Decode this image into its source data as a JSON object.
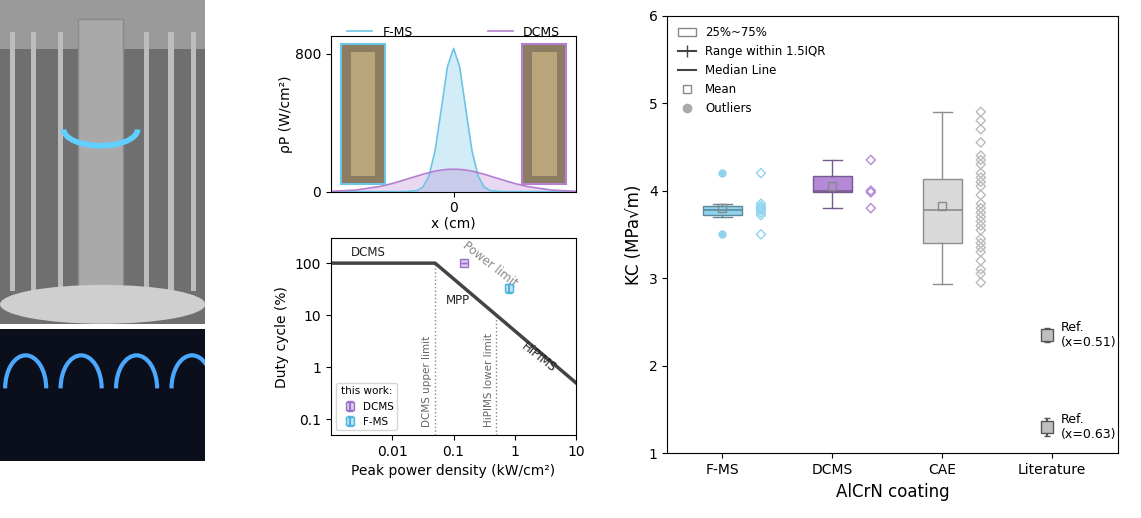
{
  "chart_data": [
    {
      "type": "line",
      "xlabel": "x (cm)",
      "ylabel": "ρP (W/cm²)",
      "x": [
        -10,
        -8,
        -6,
        -5,
        -4,
        -3,
        -2.5,
        -2,
        -1.5,
        -1,
        -0.5,
        0,
        0.5,
        1,
        1.5,
        2,
        2.5,
        3,
        4,
        5,
        6,
        8,
        10
      ],
      "series": [
        {
          "name": "F-MS",
          "color": "#6cc5e6",
          "values": [
            0,
            0,
            0,
            0,
            0,
            6,
            26,
            91,
            238,
            477,
            723,
            830,
            723,
            477,
            238,
            91,
            26,
            6,
            0,
            0,
            0,
            0,
            0
          ]
        },
        {
          "name": "DCMS",
          "color": "#b57fd1",
          "values": [
            2,
            9,
            30,
            47,
            68,
            90,
            101,
            110,
            119,
            125,
            129,
            130,
            129,
            125,
            119,
            110,
            101,
            90,
            68,
            47,
            30,
            9,
            2
          ]
        }
      ],
      "xlim": [
        -10,
        10
      ],
      "xticks": [
        0
      ],
      "ylim": [
        0,
        900
      ],
      "yticks": [
        0,
        800
      ],
      "legend": "upper center"
    },
    {
      "type": "scatter",
      "xlabel": "Peak power density (kW/cm²)",
      "ylabel": "Duty cycle (%)",
      "log": true,
      "xlim": [
        0.001,
        10
      ],
      "xticks": [
        0.01,
        0.1,
        1,
        10
      ],
      "ylim": [
        0.05,
        300
      ],
      "yticks": [
        0.1,
        1,
        10,
        100
      ],
      "series": [
        {
          "name": "DCMS",
          "color": "#9b6fc9",
          "marker": "square",
          "x": [
            0.15
          ],
          "values": [
            100
          ],
          "error": [
            [
              0
            ],
            [
              0
            ]
          ]
        },
        {
          "name": "F-MS",
          "color": "#4db3dc",
          "marker": "square",
          "x": [
            0.8
          ],
          "values": [
            33
          ],
          "error": [
            [
              6
            ],
            [
              7
            ]
          ]
        }
      ],
      "legend": "lower left",
      "legend_title": "this work:",
      "boundary": {
        "x": [
          0.001,
          0.05,
          10
        ],
        "values": [
          100,
          100,
          0.5
        ]
      },
      "guides": [
        {
          "label": "DCMS upper limit",
          "x": 0.05,
          "values": [
            0.05,
            100
          ]
        },
        {
          "label": "HiPIMS lower limit",
          "x": 0.5,
          "values": [
            0.05,
            10
          ]
        }
      ],
      "annotations": [
        {
          "text": "DCMS",
          "x": 0.004,
          "y": 100
        },
        {
          "text": "MPP",
          "x": 0.12,
          "y": 12
        },
        {
          "text": "Power limit",
          "x": 0.4,
          "y": 25
        },
        {
          "text": "HiPIMS",
          "x": 2.5,
          "y": 0.6
        }
      ]
    },
    {
      "type": "box",
      "xlabel": "AlCrN coating",
      "ylabel": "KC (MPa√m)",
      "categories": [
        "F-MS",
        "DCMS",
        "CAE",
        "Literature"
      ],
      "ylim": [
        1,
        6
      ],
      "yticks": [
        1,
        2,
        3,
        4,
        5,
        6
      ],
      "legend": "upper left",
      "legend_entries": [
        "25%~75%",
        "Range within 1.5IQR",
        "Median Line",
        "Mean",
        "Outliers"
      ],
      "boxes": [
        {
          "name": "F-MS",
          "color": "#8fd3ee",
          "whislo": 3.7,
          "q1": 3.72,
          "med": 3.78,
          "q3": 3.83,
          "whishi": 3.85,
          "mean": 3.8,
          "fliers": [
            3.5,
            4.2
          ],
          "points": [
            4.2,
            3.85,
            3.82,
            3.8,
            3.78,
            3.75,
            3.72,
            3.5
          ]
        },
        {
          "name": "DCMS",
          "color": "#b48ad8",
          "whislo": 3.8,
          "q1": 3.98,
          "med": 4.0,
          "q3": 4.17,
          "whishi": 4.35,
          "mean": 4.05,
          "fliers": [],
          "points": [
            4.35,
            4.0,
            3.98,
            3.8
          ]
        },
        {
          "name": "CAE",
          "color": "#d9d9d9",
          "whislo": 2.93,
          "q1": 3.4,
          "med": 3.78,
          "q3": 4.13,
          "whishi": 4.9,
          "mean": 3.82,
          "fliers": [],
          "points": [
            4.9,
            4.8,
            4.7,
            4.55,
            4.4,
            4.35,
            4.3,
            4.2,
            4.15,
            4.1,
            4.05,
            3.95,
            3.85,
            3.8,
            3.75,
            3.7,
            3.65,
            3.6,
            3.55,
            3.45,
            3.4,
            3.35,
            3.3,
            3.2,
            3.1,
            3.05,
            2.95
          ]
        }
      ],
      "references": [
        {
          "label": "Ref.\n(x=0.51)",
          "value": 2.35,
          "error": 0.08,
          "color": "#bfbfbf"
        },
        {
          "label": "Ref.\n(x=0.63)",
          "value": 1.3,
          "error": 0.1,
          "color": "#bfbfbf"
        }
      ]
    }
  ]
}
